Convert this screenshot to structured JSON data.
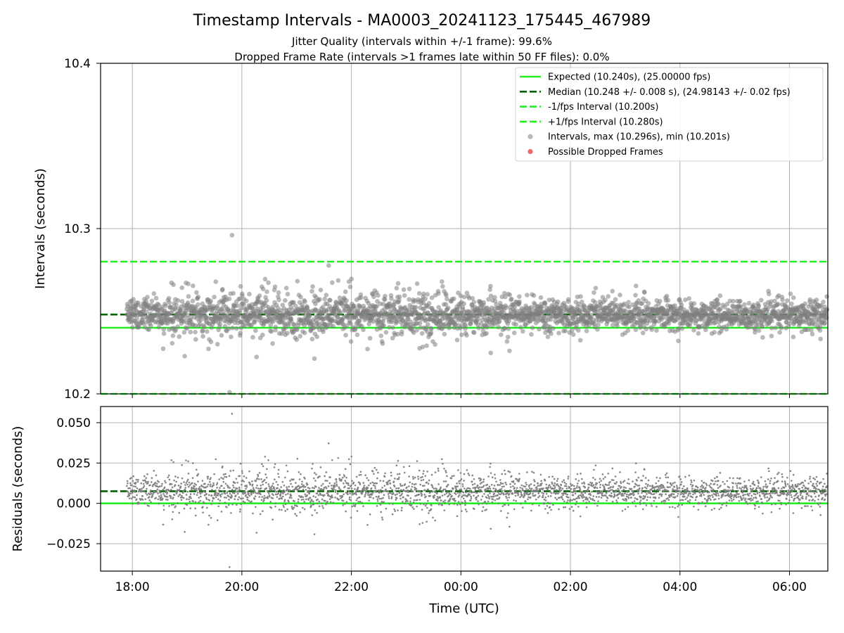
{
  "chart_data": {
    "title": "Timestamp Intervals - MA0003_20241123_175445_467989",
    "subtitles": [
      "Jitter Quality (intervals within +/-1 frame): 99.6%",
      "Dropped Frame Rate (intervals >1 frames late within 50 FF files): 0.0%"
    ],
    "xlabel": "Time (UTC)",
    "x_tick_labels": [
      "18:00",
      "20:00",
      "22:00",
      "00:00",
      "02:00",
      "04:00",
      "06:00"
    ],
    "x_tick_hours": [
      18,
      20,
      22,
      24,
      26,
      28,
      30
    ],
    "x_range_hours": [
      17.42,
      30.7
    ],
    "x_data_range_hours": [
      17.9,
      30.7
    ],
    "legend_position": "top-right",
    "colors": {
      "expected": "#22ee22",
      "median": "#006400",
      "interval_bound": "#22ee22",
      "points": "#808080",
      "dropped": "#ee4444",
      "grid": "#b0b0b0"
    },
    "charts": [
      {
        "type": "scatter",
        "ylabel": "Intervals (seconds)",
        "ylim": [
          10.2,
          10.4
        ],
        "y_tick_labels": [
          "10.2",
          "10.3",
          "10.4"
        ],
        "y_ticks": [
          10.2,
          10.3,
          10.4
        ],
        "grid": true,
        "hlines": [
          {
            "name": "Expected (10.240s), (25.00000 fps)",
            "y": 10.24,
            "style": "solid",
            "color_key": "expected"
          },
          {
            "name": "Median (10.248 +/- 0.008 s), (24.98143 +/- 0.02 fps)",
            "y": 10.248,
            "style": "dashed",
            "color_key": "median"
          },
          {
            "name": "-1/fps Interval (10.200s)",
            "y": 10.2,
            "style": "dashed",
            "color_key": "interval_bound"
          },
          {
            "name": "+1/fps Interval (10.280s)",
            "y": 10.28,
            "style": "dashed",
            "color_key": "interval_bound"
          }
        ],
        "scatter_series": [
          {
            "name": "Intervals, max (10.296s), min (10.201s)",
            "median": 10.248,
            "spread": 0.008,
            "max": 10.296,
            "min": 10.201,
            "count": 2800,
            "color_key": "points"
          },
          {
            "name": "Possible Dropped Frames",
            "count": 0,
            "color_key": "dropped"
          }
        ]
      },
      {
        "type": "scatter",
        "ylabel": "Residuals (seconds)",
        "ylim": [
          -0.042,
          0.06
        ],
        "y_tick_labels": [
          "−0.025",
          "0.000",
          "0.025",
          "0.050"
        ],
        "y_ticks": [
          -0.025,
          0.0,
          0.025,
          0.05
        ],
        "grid": true,
        "hlines": [
          {
            "y": 0.0,
            "style": "solid",
            "color_key": "expected"
          },
          {
            "y": 0.0075,
            "style": "dashed",
            "color_key": "median"
          }
        ],
        "scatter_series": [
          {
            "median": 0.0075,
            "spread": 0.008,
            "max": 0.056,
            "min": -0.039,
            "count": 2800,
            "color_key": "points"
          }
        ]
      }
    ],
    "legend_items": [
      {
        "label": "Expected (10.240s), (25.00000 fps)",
        "kind": "line-solid",
        "color_key": "expected"
      },
      {
        "label": "Median (10.248 +/- 0.008 s), (24.98143 +/- 0.02 fps)",
        "kind": "line-dashed",
        "color_key": "median"
      },
      {
        "label": "-1/fps Interval (10.200s)",
        "kind": "line-dashed",
        "color_key": "interval_bound"
      },
      {
        "label": "+1/fps Interval (10.280s)",
        "kind": "line-dashed",
        "color_key": "interval_bound"
      },
      {
        "label": "Intervals, max (10.296s), min (10.201s)",
        "kind": "dot",
        "color_key": "points"
      },
      {
        "label": "Possible Dropped Frames",
        "kind": "dot",
        "color_key": "dropped"
      }
    ]
  }
}
